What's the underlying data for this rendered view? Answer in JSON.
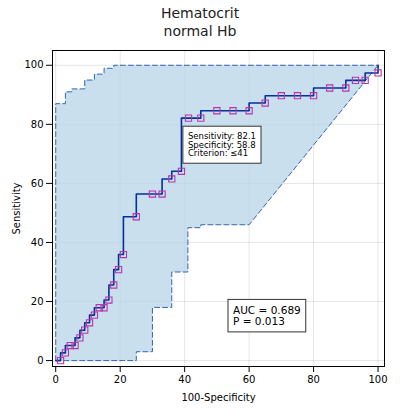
{
  "chart_data": {
    "type": "line",
    "title": "Hematocrit",
    "subtitle": "normal Hb",
    "xlabel": "100-Specificity",
    "ylabel": "Sensitivity",
    "xlim": [
      -1,
      102
    ],
    "ylim": [
      -2,
      105
    ],
    "xticks": [
      0,
      20,
      40,
      60,
      80,
      100
    ],
    "yticks": [
      0,
      20,
      40,
      60,
      80,
      100
    ],
    "grid": true,
    "series": [
      {
        "type": "area",
        "color": "#b8d4e8",
        "x": [
          0,
          0,
          3,
          3,
          5,
          5,
          7,
          7,
          9,
          9,
          12,
          12,
          15,
          15,
          18,
          18,
          21,
          21,
          22,
          22,
          100
        ],
        "values": [
          0,
          87,
          87,
          91,
          91,
          92,
          92,
          92,
          92,
          95,
          95,
          97,
          97,
          99,
          99,
          100,
          100,
          100,
          100,
          100,
          100
        ],
        "x_lower": [
          0,
          0,
          1,
          1,
          3,
          3,
          5,
          5,
          8,
          8,
          12,
          12,
          15,
          15,
          19,
          19,
          21,
          21,
          25,
          25,
          30,
          30,
          36,
          36,
          41,
          41,
          45,
          45,
          50,
          50,
          60,
          60,
          100
        ],
        "values_lower": [
          0,
          0,
          0,
          0,
          0,
          0,
          0,
          0,
          0,
          0,
          0,
          0,
          0,
          0,
          0,
          0,
          0,
          0,
          0,
          3,
          3,
          18,
          18,
          30,
          30,
          45,
          45,
          46,
          46,
          46,
          46,
          46,
          100
        ]
      },
      {
        "type": "line",
        "line_style": "dashed",
        "color": "#3366aa",
        "x": [
          0,
          0,
          3,
          3,
          5,
          5,
          7,
          7,
          9,
          9,
          12,
          12,
          15,
          15,
          18,
          18,
          21,
          21,
          22,
          22,
          100
        ],
        "values": [
          0,
          87,
          87,
          91,
          91,
          92,
          92,
          92,
          92,
          95,
          95,
          97,
          97,
          99,
          99,
          100,
          100,
          100,
          100,
          100,
          100
        ]
      },
      {
        "type": "line",
        "line_style": "dashed",
        "color": "#3366aa",
        "x": [
          0,
          0,
          1,
          1,
          3,
          3,
          5,
          5,
          8,
          8,
          12,
          12,
          15,
          15,
          19,
          19,
          21,
          21,
          25,
          25,
          30,
          30,
          36,
          36,
          41,
          41,
          45,
          45,
          50,
          50,
          60,
          60,
          100
        ],
        "values": [
          0,
          0,
          0,
          0,
          0,
          0,
          0,
          0,
          0,
          0,
          0,
          0,
          0,
          0,
          0,
          0,
          0,
          0,
          0,
          3,
          3,
          18,
          18,
          30,
          30,
          45,
          45,
          46,
          46,
          46,
          46,
          46,
          100
        ]
      },
      {
        "type": "line",
        "line_style": "solid",
        "color": "#003399",
        "x": [
          0,
          0,
          1.5,
          1.5,
          3,
          3,
          4.5,
          4.5,
          6,
          6,
          7.5,
          7.5,
          9,
          9,
          10.5,
          10.5,
          12,
          12,
          13.5,
          13.5,
          15,
          15,
          16.5,
          16.5,
          18,
          18,
          19.5,
          19.5,
          21,
          21,
          25,
          25,
          30,
          30,
          33,
          33,
          36,
          36,
          39,
          39,
          41.2,
          41.2,
          45,
          45,
          50,
          50,
          55,
          55,
          60,
          60,
          65,
          65,
          70,
          70,
          75,
          75,
          80,
          80,
          85,
          85,
          90,
          90,
          93,
          93,
          96,
          96,
          100,
          100
        ],
        "values": [
          0,
          0,
          0,
          2.6,
          2.6,
          5.1,
          5.1,
          5.1,
          5.1,
          7.7,
          7.7,
          10.3,
          10.3,
          12.8,
          12.8,
          15.4,
          15.4,
          17.9,
          17.9,
          17.9,
          17.9,
          20.5,
          20.5,
          25.6,
          25.6,
          30.8,
          30.8,
          35.9,
          35.9,
          48.7,
          48.7,
          56.4,
          56.4,
          56.4,
          56.4,
          61.5,
          61.5,
          64.1,
          64.1,
          82.1,
          82.1,
          82.1,
          82.1,
          84.6,
          84.6,
          84.6,
          84.6,
          84.6,
          84.6,
          87.2,
          87.2,
          89.7,
          89.7,
          89.7,
          89.7,
          89.7,
          89.7,
          92.3,
          92.3,
          92.3,
          92.3,
          94.9,
          94.9,
          94.9,
          94.9,
          97.4,
          97.4,
          100
        ]
      },
      {
        "type": "scatter",
        "marker": "square_open",
        "color": "#bb33aa",
        "x": [
          1.5,
          3,
          4.5,
          6,
          7.5,
          9,
          10.5,
          12,
          13.5,
          15,
          16.5,
          18,
          19.5,
          21,
          25,
          30,
          33,
          36,
          39,
          41.2,
          45,
          50,
          55,
          60,
          65,
          70,
          75,
          80,
          85,
          90,
          93,
          96,
          100
        ],
        "values": [
          0,
          2.6,
          5.1,
          5.1,
          7.7,
          10.3,
          12.8,
          15.4,
          17.9,
          17.9,
          20.5,
          25.6,
          30.8,
          35.9,
          48.7,
          56.4,
          56.4,
          61.5,
          64.1,
          82.1,
          82.1,
          84.6,
          84.6,
          84.6,
          87.2,
          89.7,
          89.7,
          89.7,
          92.3,
          92.3,
          94.9,
          94.9,
          97.4
        ]
      }
    ],
    "annotations": [
      {
        "lines": [
          "AUC = 0.689",
          "P = 0.013"
        ]
      },
      {
        "lines": [
          "Sensitivity: 82.1",
          "Specificity: 58.8",
          "Criterion: ≤41"
        ]
      }
    ]
  }
}
